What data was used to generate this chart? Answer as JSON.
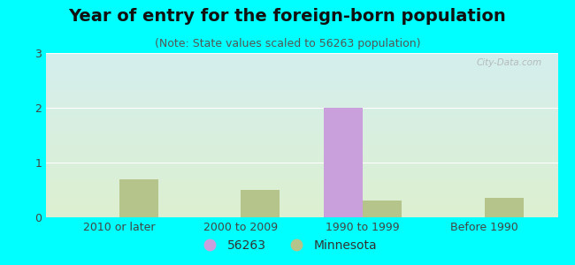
{
  "title": "Year of entry for the foreign-born population",
  "subtitle": "(Note: State values scaled to 56263 population)",
  "categories": [
    "2010 or later",
    "2000 to 2009",
    "1990 to 1999",
    "Before 1990"
  ],
  "city_values": [
    0,
    0,
    2,
    0
  ],
  "state_values": [
    0.7,
    0.5,
    0.3,
    0.35
  ],
  "city_color": "#c9a0dc",
  "state_color": "#b5c48a",
  "background_outer": "#00ffff",
  "background_inner_top": "#d4eeee",
  "background_inner_bottom": "#ddf0d0",
  "ylim": [
    0,
    3
  ],
  "yticks": [
    0,
    1,
    2,
    3
  ],
  "legend_city_label": "56263",
  "legend_state_label": "Minnesota",
  "bar_width": 0.32,
  "title_fontsize": 14,
  "subtitle_fontsize": 9,
  "watermark": "City-Data.com"
}
